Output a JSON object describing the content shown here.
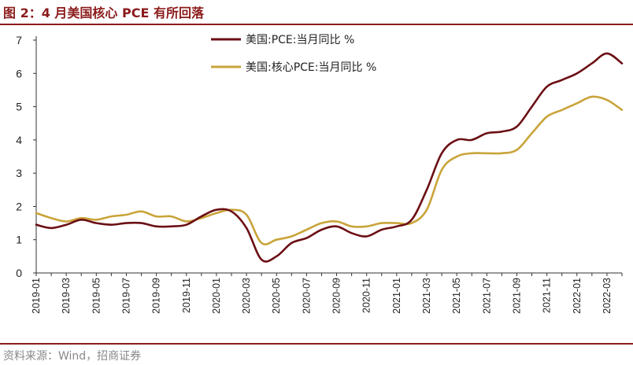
{
  "figure": {
    "title": "图 2：4 月美国核心 PCE 有所回落",
    "source": "资料来源：Wind，招商证券"
  },
  "colors": {
    "brand": "#8B1A1A",
    "series_pce": "#6B0F14",
    "series_core": "#C9A43A"
  },
  "chart_data": {
    "type": "line",
    "title": "",
    "xlabel": "",
    "ylabel": "",
    "ylim": [
      0,
      7
    ],
    "yticks": [
      "0",
      "1",
      "2",
      "3",
      "4",
      "5",
      "6",
      "7"
    ],
    "grid": false,
    "legend_position": "top-center",
    "xtick_labels": [
      "2019-01",
      "2019-03",
      "2019-05",
      "2019-07",
      "2019-09",
      "2019-11",
      "2020-01",
      "2020-03",
      "2020-05",
      "2020-07",
      "2020-09",
      "2020-11",
      "2021-01",
      "2021-03",
      "2021-05",
      "2021-07",
      "2021-09",
      "2021-11",
      "2022-01",
      "2022-03"
    ],
    "x": [
      "2019-01",
      "2019-02",
      "2019-03",
      "2019-04",
      "2019-05",
      "2019-06",
      "2019-07",
      "2019-08",
      "2019-09",
      "2019-10",
      "2019-11",
      "2019-12",
      "2020-01",
      "2020-02",
      "2020-03",
      "2020-04",
      "2020-05",
      "2020-06",
      "2020-07",
      "2020-08",
      "2020-09",
      "2020-10",
      "2020-11",
      "2020-12",
      "2021-01",
      "2021-02",
      "2021-03",
      "2021-04",
      "2021-05",
      "2021-06",
      "2021-07",
      "2021-08",
      "2021-09",
      "2021-10",
      "2021-11",
      "2021-12",
      "2022-01",
      "2022-02",
      "2022-03",
      "2022-04"
    ],
    "series": [
      {
        "name": "美国:PCE:当月同比 %",
        "values": [
          1.45,
          1.35,
          1.45,
          1.6,
          1.5,
          1.45,
          1.5,
          1.5,
          1.4,
          1.4,
          1.45,
          1.7,
          1.9,
          1.85,
          1.35,
          0.4,
          0.5,
          0.9,
          1.05,
          1.3,
          1.4,
          1.2,
          1.1,
          1.3,
          1.4,
          1.6,
          2.5,
          3.6,
          4.0,
          4.0,
          4.2,
          4.25,
          4.4,
          5.0,
          5.6,
          5.8,
          6.0,
          6.3,
          6.6,
          6.3
        ]
      },
      {
        "name": "美国:核心PCE:当月同比 %",
        "values": [
          1.8,
          1.65,
          1.55,
          1.65,
          1.6,
          1.7,
          1.75,
          1.85,
          1.7,
          1.7,
          1.55,
          1.65,
          1.8,
          1.9,
          1.75,
          0.9,
          1.0,
          1.1,
          1.3,
          1.5,
          1.55,
          1.4,
          1.4,
          1.5,
          1.5,
          1.5,
          1.9,
          3.1,
          3.5,
          3.6,
          3.6,
          3.6,
          3.7,
          4.2,
          4.7,
          4.9,
          5.1,
          5.3,
          5.2,
          4.9
        ]
      }
    ]
  }
}
